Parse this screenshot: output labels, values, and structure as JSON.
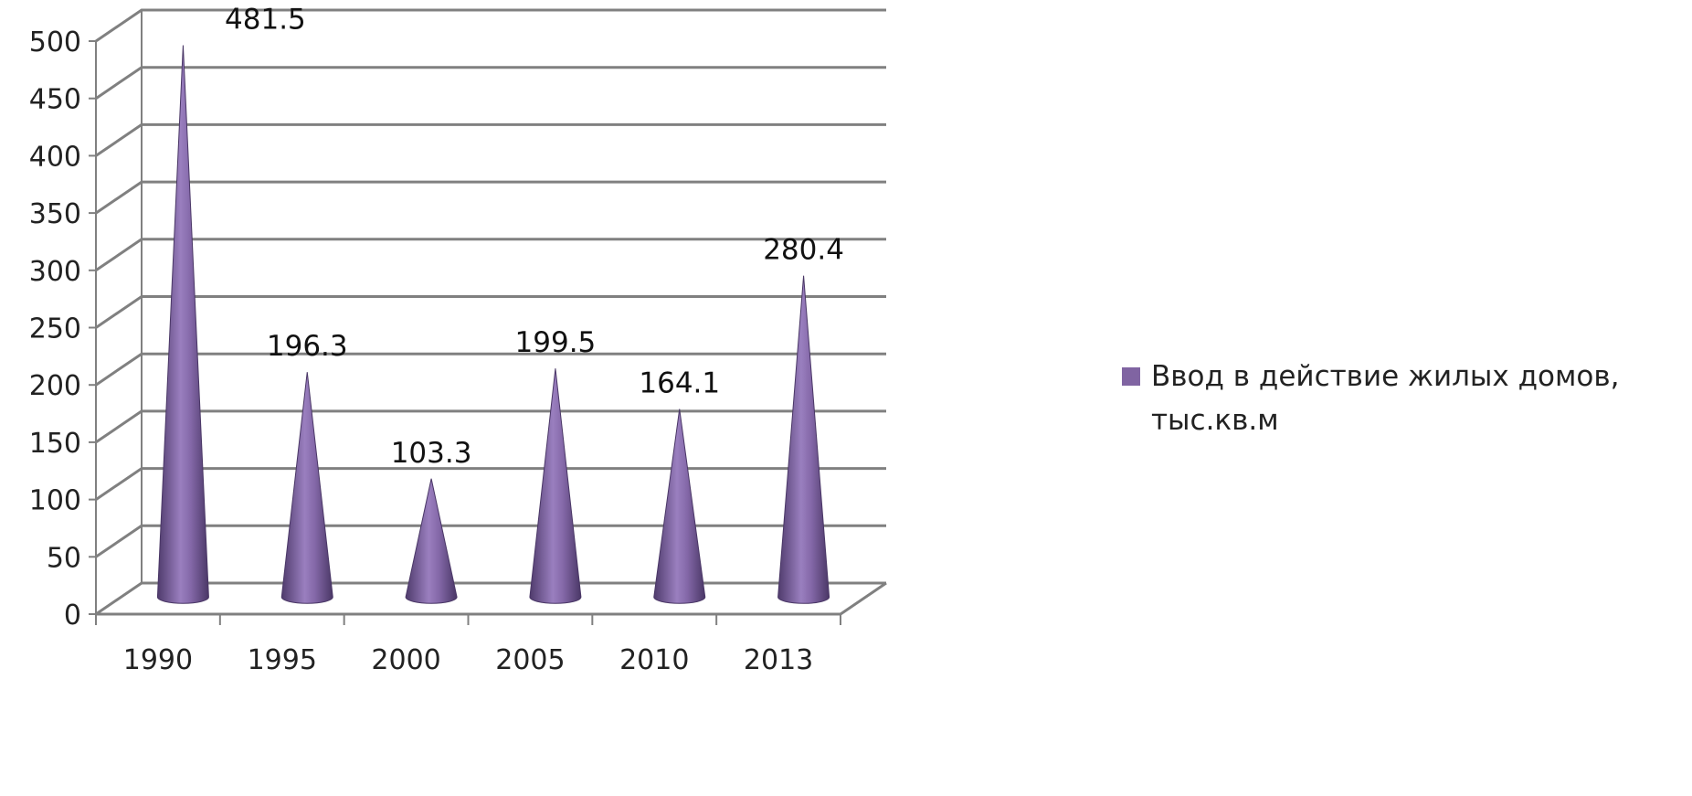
{
  "chart_data": {
    "type": "bar",
    "bar_shape": "cone",
    "categories": [
      "1990",
      "1995",
      "2000",
      "2005",
      "2010",
      "2013"
    ],
    "series": [
      {
        "name": "Ввод в действие жилых домов, тыс.кв.м",
        "values": [
          481.5,
          196.3,
          103.3,
          199.5,
          164.1,
          280.4
        ]
      }
    ],
    "data_labels": [
      "481.5",
      "196.3",
      "103.3",
      "199.5",
      "164.1",
      "280.4"
    ],
    "y_ticks": [
      "0",
      "50",
      "100",
      "150",
      "200",
      "250",
      "300",
      "350",
      "400",
      "450",
      "500"
    ],
    "ylim": [
      0,
      500
    ],
    "grid": true,
    "legend_position": "right",
    "colors": {
      "cone": "#8064a2",
      "cone_dark": "#5a4577",
      "cone_light": "#a98fcb",
      "grid": "#808080",
      "swatch": "#8064a2"
    }
  }
}
